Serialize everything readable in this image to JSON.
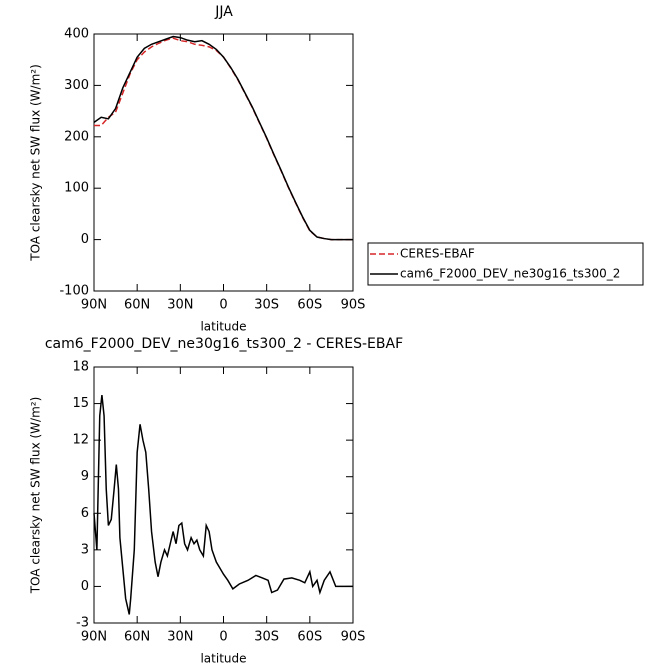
{
  "chart_data": [
    {
      "type": "line",
      "title": "JJA",
      "xlabel": "latitude",
      "ylabel": "TOA clearsky net SW flux (W/m²)",
      "x": [
        90,
        85,
        80,
        75,
        70,
        65,
        60,
        55,
        50,
        45,
        40,
        35,
        30,
        25,
        20,
        15,
        10,
        5,
        0,
        -5,
        -10,
        -15,
        -20,
        -25,
        -30,
        -35,
        -40,
        -45,
        -50,
        -55,
        -60,
        -65,
        -70,
        -75,
        -80,
        -85,
        -90
      ],
      "series": [
        {
          "name": "CERES-EBAF",
          "color": "#d62728",
          "dash": true,
          "values": [
            222,
            222,
            238,
            248,
            285,
            322,
            350,
            365,
            375,
            382,
            388,
            392,
            387,
            385,
            380,
            378,
            375,
            368,
            355,
            334,
            311,
            284,
            257,
            227,
            197,
            165,
            134,
            102,
            72,
            43,
            17,
            5,
            2,
            0,
            0,
            0,
            0
          ]
        },
        {
          "name": "cam6_F2000_DEV_ne30g16_ts300_2",
          "color": "#000000",
          "dash": false,
          "values": [
            228,
            238,
            235,
            255,
            295,
            325,
            355,
            372,
            380,
            385,
            390,
            395,
            393,
            388,
            385,
            387,
            380,
            370,
            355,
            335,
            312,
            285,
            258,
            228,
            198,
            166,
            135,
            103,
            73,
            44,
            18,
            5,
            2,
            0,
            0,
            0,
            0
          ]
        }
      ],
      "xlim": [
        90,
        -90
      ],
      "xticks": [
        {
          "value": 90,
          "label": "90N"
        },
        {
          "value": 60,
          "label": "60N"
        },
        {
          "value": 30,
          "label": "30N"
        },
        0,
        {
          "value": -30,
          "label": "30S"
        },
        {
          "value": -60,
          "label": "60S"
        },
        {
          "value": -90,
          "label": "90S"
        }
      ],
      "ylim": [
        -100,
        400
      ],
      "yticks": [
        -100,
        0,
        100,
        200,
        300,
        400
      ],
      "legend": "outside-right"
    },
    {
      "type": "line",
      "title": "cam6_F2000_DEV_ne30g16_ts300_2 - CERES-EBAF",
      "xlabel": "latitude",
      "ylabel": "TOA clearsky net SW flux (W/m²)",
      "x": [
        90,
        88,
        86,
        84.5,
        83,
        81.5,
        80,
        78,
        76,
        74.5,
        73,
        72,
        70,
        68,
        65.5,
        64.5,
        62,
        60,
        58,
        56,
        54,
        52,
        50,
        47.5,
        45.5,
        43.5,
        41,
        39,
        37,
        35,
        33,
        31,
        29,
        27,
        25,
        22.5,
        20.5,
        18.5,
        16.5,
        14,
        12,
        10,
        8,
        5,
        2.5,
        0,
        -3,
        -6.5,
        -11,
        -17,
        -22.5,
        -27,
        -31,
        -33.5,
        -37.5,
        -42,
        -47.5,
        -53,
        -56.5,
        -60,
        -62,
        -65,
        -67,
        -70,
        -74,
        -78,
        -90
      ],
      "values": [
        6,
        3,
        14,
        15.7,
        14,
        8,
        5,
        5.5,
        8,
        10,
        8,
        4,
        1.5,
        -1,
        -2.3,
        -1,
        3,
        11,
        13.3,
        12,
        11,
        8,
        4.5,
        2,
        0.8,
        2,
        3,
        2.5,
        3.5,
        4.5,
        3.5,
        5,
        5.2,
        3.5,
        3,
        4,
        3.5,
        3.8,
        3,
        2.5,
        5,
        4.5,
        3,
        2,
        1.5,
        1,
        0.5,
        -0.2,
        0.2,
        0.5,
        0.9,
        0.7,
        0.5,
        -0.5,
        -0.3,
        0.6,
        0.7,
        0.5,
        0.3,
        1.2,
        0,
        0.5,
        -0.5,
        0.5,
        1.2,
        0,
        0
      ],
      "color": "#000000",
      "xlim": [
        90,
        -90
      ],
      "xticks": [
        {
          "value": 90,
          "label": "90N"
        },
        {
          "value": 60,
          "label": "60N"
        },
        {
          "value": 30,
          "label": "30N"
        },
        0,
        {
          "value": -30,
          "label": "30S"
        },
        {
          "value": -60,
          "label": "60S"
        },
        {
          "value": -90,
          "label": "90S"
        }
      ],
      "ylim": [
        -3,
        18
      ],
      "yticks": [
        -3,
        0,
        3,
        6,
        9,
        12,
        15,
        18
      ]
    }
  ]
}
